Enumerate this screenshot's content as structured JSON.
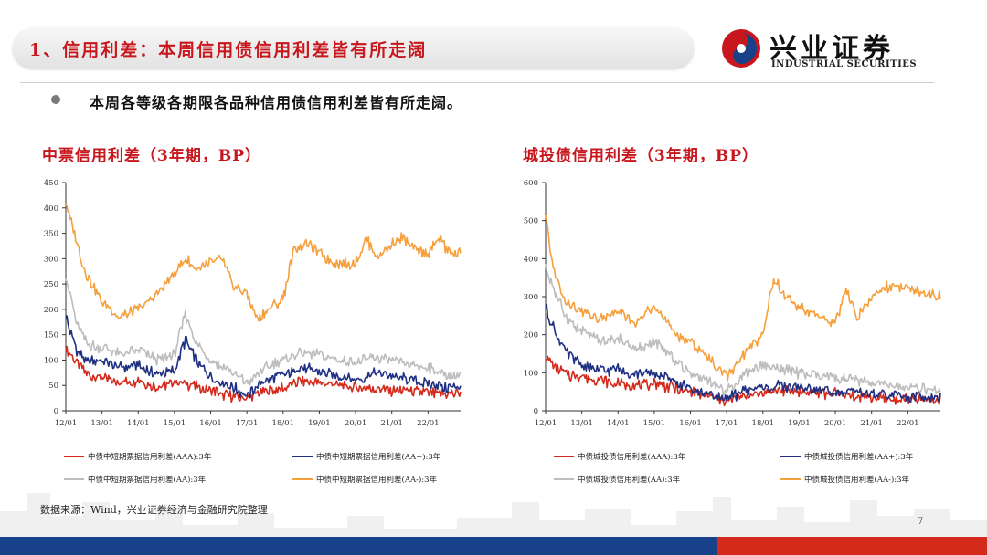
{
  "header": {
    "title": "1、信用利差：本周信用债信用利差皆有所走阔",
    "logo_cn": "兴业证券",
    "logo_en": "INDUSTRIAL SECURITIES"
  },
  "bullet": "本周各等级各期限各品种信用债信用利差皆有所走阔。",
  "source": "数据来源：Wind，兴业证券经济与金融研究院整理",
  "page_number": "7",
  "colors": {
    "brand_red": "#c8161d",
    "footer_blue": "#17428a",
    "footer_red": "#d42a1c",
    "aaa": "#d42a1c",
    "aa_plus": "#1f2f82",
    "aa": "#bdbdbd",
    "aa_minus": "#f5a03c"
  },
  "chart_data": [
    {
      "type": "line",
      "title": "中票信用利差（3年期，BP）",
      "x_ticks": [
        "12/01",
        "13/01",
        "14/01",
        "15/01",
        "16/01",
        "17/01",
        "18/01",
        "19/01",
        "20/01",
        "21/01",
        "22/01"
      ],
      "xlim": [
        2012.0,
        2022.9
      ],
      "ylim": [
        0,
        450
      ],
      "y_ticks": [
        0,
        50,
        100,
        150,
        200,
        250,
        300,
        350,
        400,
        450
      ],
      "series": [
        {
          "name": "中债中短期票据信用利差(AAA):3年",
          "color": "#d42a1c",
          "x": [
            2012.0,
            2012.3,
            2012.6,
            2013.0,
            2013.5,
            2014.0,
            2014.5,
            2015.0,
            2015.5,
            2016.0,
            2016.5,
            2017.0,
            2017.5,
            2018.0,
            2018.5,
            2019.0,
            2019.5,
            2020.0,
            2020.5,
            2021.0,
            2021.5,
            2022.0,
            2022.5,
            2022.9
          ],
          "y": [
            120,
            95,
            70,
            65,
            55,
            60,
            45,
            55,
            50,
            40,
            30,
            25,
            40,
            45,
            60,
            55,
            50,
            45,
            45,
            40,
            40,
            35,
            30,
            35
          ]
        },
        {
          "name": "中债中短期票据信用利差(AA+):3年",
          "color": "#1f2f82",
          "x": [
            2012.0,
            2012.3,
            2012.6,
            2013.0,
            2013.5,
            2014.0,
            2014.5,
            2015.0,
            2015.3,
            2015.6,
            2016.0,
            2016.5,
            2017.0,
            2017.5,
            2018.0,
            2018.5,
            2019.0,
            2019.5,
            2020.0,
            2020.5,
            2021.0,
            2021.5,
            2022.0,
            2022.5,
            2022.9
          ],
          "y": [
            185,
            120,
            95,
            100,
            85,
            90,
            70,
            80,
            140,
            100,
            65,
            50,
            30,
            60,
            70,
            85,
            75,
            70,
            60,
            75,
            70,
            60,
            55,
            45,
            50
          ]
        },
        {
          "name": "中债中短期票据信用利差(AA):3年",
          "color": "#bdbdbd",
          "x": [
            2012.0,
            2012.3,
            2012.6,
            2013.0,
            2013.5,
            2014.0,
            2014.5,
            2015.0,
            2015.3,
            2015.6,
            2016.0,
            2016.5,
            2017.0,
            2017.5,
            2018.0,
            2018.5,
            2019.0,
            2019.5,
            2020.0,
            2020.5,
            2021.0,
            2021.5,
            2022.0,
            2022.5,
            2022.9
          ],
          "y": [
            270,
            170,
            130,
            125,
            110,
            120,
            100,
            110,
            190,
            135,
            100,
            80,
            55,
            85,
            100,
            115,
            110,
            100,
            95,
            105,
            100,
            90,
            85,
            70,
            70
          ]
        },
        {
          "name": "中债中短期票据信用利差(AA-):3年",
          "color": "#f5a03c",
          "x": [
            2012.0,
            2012.2,
            2012.5,
            2013.0,
            2013.5,
            2014.0,
            2014.5,
            2015.0,
            2015.3,
            2015.6,
            2016.0,
            2016.3,
            2016.6,
            2017.0,
            2017.3,
            2017.6,
            2018.0,
            2018.3,
            2018.6,
            2019.0,
            2019.5,
            2020.0,
            2020.3,
            2020.6,
            2021.0,
            2021.3,
            2021.6,
            2022.0,
            2022.3,
            2022.6,
            2022.9
          ],
          "y": [
            410,
            360,
            280,
            215,
            185,
            200,
            230,
            270,
            300,
            280,
            290,
            300,
            250,
            230,
            180,
            200,
            220,
            320,
            330,
            310,
            290,
            290,
            340,
            300,
            330,
            340,
            320,
            310,
            340,
            310,
            310
          ]
        }
      ]
    },
    {
      "type": "line",
      "title": "城投债信用利差（3年期，BP）",
      "x_ticks": [
        "12/01",
        "13/01",
        "14/01",
        "15/01",
        "16/01",
        "17/01",
        "18/01",
        "19/01",
        "20/01",
        "21/01",
        "22/01"
      ],
      "xlim": [
        2012.0,
        2022.9
      ],
      "ylim": [
        0,
        600
      ],
      "y_ticks": [
        0,
        100,
        200,
        300,
        400,
        500,
        600
      ],
      "series": [
        {
          "name": "中债城投债信用利差(AAA):3年",
          "color": "#d42a1c",
          "x": [
            2012.0,
            2012.3,
            2012.6,
            2013.0,
            2013.5,
            2014.0,
            2014.5,
            2015.0,
            2015.5,
            2016.0,
            2016.5,
            2017.0,
            2017.5,
            2018.0,
            2018.5,
            2019.0,
            2019.5,
            2020.0,
            2020.5,
            2021.0,
            2021.5,
            2022.0,
            2022.5,
            2022.9
          ],
          "y": [
            140,
            110,
            95,
            90,
            80,
            70,
            65,
            70,
            60,
            50,
            40,
            25,
            40,
            50,
            55,
            50,
            45,
            45,
            40,
            35,
            30,
            30,
            25,
            25
          ]
        },
        {
          "name": "中债城投债信用利差(AA+):3年",
          "color": "#1f2f82",
          "x": [
            2012.0,
            2012.3,
            2012.6,
            2013.0,
            2013.5,
            2014.0,
            2014.5,
            2015.0,
            2015.5,
            2016.0,
            2016.5,
            2017.0,
            2017.5,
            2018.0,
            2018.5,
            2019.0,
            2019.5,
            2020.0,
            2020.5,
            2021.0,
            2021.5,
            2022.0,
            2022.5,
            2022.9
          ],
          "y": [
            270,
            200,
            150,
            120,
            105,
            110,
            95,
            100,
            80,
            55,
            45,
            30,
            55,
            60,
            65,
            60,
            55,
            50,
            50,
            45,
            40,
            40,
            35,
            35
          ]
        },
        {
          "name": "中债城投债信用利差(AA):3年",
          "color": "#bdbdbd",
          "x": [
            2012.0,
            2012.3,
            2012.6,
            2013.0,
            2013.5,
            2014.0,
            2014.5,
            2015.0,
            2015.5,
            2016.0,
            2016.5,
            2017.0,
            2017.5,
            2018.0,
            2018.5,
            2019.0,
            2019.5,
            2020.0,
            2020.5,
            2021.0,
            2021.5,
            2022.0,
            2022.5,
            2022.9
          ],
          "y": [
            380,
            300,
            240,
            210,
            180,
            190,
            160,
            180,
            140,
            100,
            80,
            50,
            100,
            120,
            110,
            100,
            90,
            85,
            80,
            75,
            65,
            60,
            55,
            50
          ]
        },
        {
          "name": "中债城投债信用利差(AA-):3年",
          "color": "#f5a03c",
          "x": [
            2012.0,
            2012.2,
            2012.5,
            2013.0,
            2013.5,
            2014.0,
            2014.5,
            2015.0,
            2015.5,
            2016.0,
            2016.5,
            2017.0,
            2017.5,
            2018.0,
            2018.3,
            2018.6,
            2019.0,
            2019.5,
            2020.0,
            2020.3,
            2020.6,
            2021.0,
            2021.5,
            2022.0,
            2022.5,
            2022.9
          ],
          "y": [
            510,
            380,
            290,
            260,
            240,
            260,
            230,
            280,
            210,
            180,
            140,
            90,
            150,
            200,
            350,
            300,
            270,
            250,
            230,
            320,
            240,
            300,
            330,
            320,
            310,
            300
          ]
        }
      ]
    }
  ]
}
